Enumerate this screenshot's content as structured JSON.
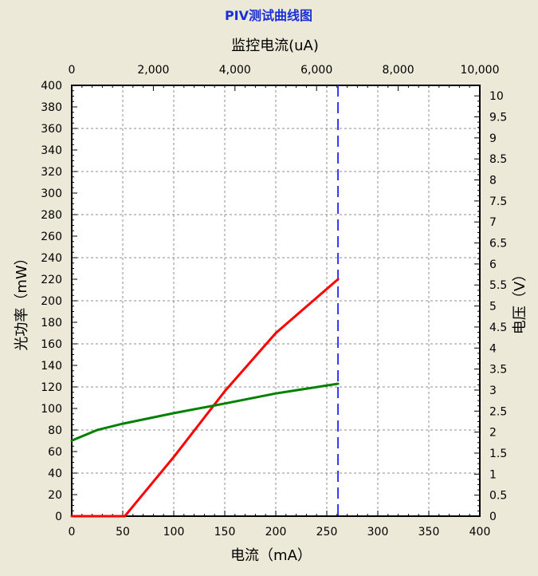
{
  "chart_data": {
    "type": "line",
    "title": "PIV测试曲线图",
    "xlabel": "电流（mA）",
    "ylabel": "光功率（mW）",
    "x2label": "监控电流(uA)",
    "y2label": "电压（V）",
    "xlim": [
      0,
      400
    ],
    "ylim": [
      0,
      400
    ],
    "x2lim": [
      0,
      10000
    ],
    "y2lim": [
      0,
      10.25
    ],
    "x_ticks": [
      "0",
      "50",
      "100",
      "150",
      "200",
      "250",
      "300",
      "350",
      "400"
    ],
    "y_ticks": [
      "0",
      "20",
      "40",
      "60",
      "80",
      "100",
      "120",
      "140",
      "160",
      "180",
      "200",
      "220",
      "240",
      "260",
      "280",
      "300",
      "320",
      "340",
      "360",
      "380",
      "400"
    ],
    "x2_ticks": [
      "0",
      "2,000",
      "4,000",
      "6,000",
      "8,000",
      "10,000"
    ],
    "y2_ticks": [
      "0",
      "0.5",
      "1",
      "1.5",
      "2",
      "2.5",
      "3",
      "3.5",
      "4",
      "4.5",
      "5",
      "5.5",
      "6",
      "6.5",
      "7",
      "7.5",
      "8",
      "8.5",
      "9",
      "9.5",
      "10"
    ],
    "grid": true,
    "series": [
      {
        "axis": "left",
        "color": "#ff0000",
        "x": [
          0,
          52,
          100,
          150,
          200,
          261
        ],
        "y": [
          0,
          0,
          55,
          116,
          170,
          220
        ]
      },
      {
        "axis": "right",
        "color": "#008000",
        "x": [
          0,
          25,
          50,
          100,
          150,
          200,
          261
        ],
        "y": [
          1.8,
          2.05,
          2.2,
          2.45,
          2.68,
          2.92,
          3.15
        ]
      }
    ],
    "marker_line": {
      "x": 261,
      "color": "#3333ff",
      "style": "dashed"
    }
  }
}
